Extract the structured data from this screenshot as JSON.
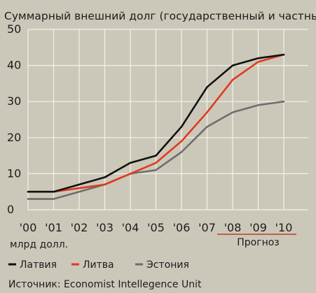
{
  "colors": {
    "background": "#ccc8b9",
    "gridline": "#f3f1ea",
    "text": "#1c1c1c",
    "forecast_underline": "#c23a2a"
  },
  "chart_data": {
    "type": "line",
    "title": "Суммарный внешний долг (государственный и частный)",
    "unit_label": "млрд долл.",
    "x": [
      "'00",
      "'01",
      "'02",
      "'03",
      "'04",
      "'05",
      "'06",
      "'07",
      "'08",
      "'09",
      "'10"
    ],
    "forecast_label": "Прогноз",
    "forecast_range": [
      "'08",
      "'10"
    ],
    "yticks": [
      0,
      10,
      20,
      30,
      40,
      50
    ],
    "ylim": [
      0,
      50
    ],
    "grid": true,
    "legend_position": "bottom",
    "series": [
      {
        "name": "Латвия",
        "color": "#111111",
        "values": [
          5,
          5,
          7,
          9,
          13,
          15,
          23,
          34,
          40,
          42,
          43
        ]
      },
      {
        "name": "Литва",
        "color": "#e03a22",
        "values": [
          5,
          5,
          6,
          7,
          10,
          13,
          19,
          27,
          36,
          41,
          43
        ]
      },
      {
        "name": "Эстония",
        "color": "#6e6e6e",
        "values": [
          3,
          3,
          5,
          7,
          10,
          11,
          16,
          23,
          27,
          29,
          30
        ]
      }
    ],
    "source": "Источник: Economist Intellegence Unit"
  }
}
